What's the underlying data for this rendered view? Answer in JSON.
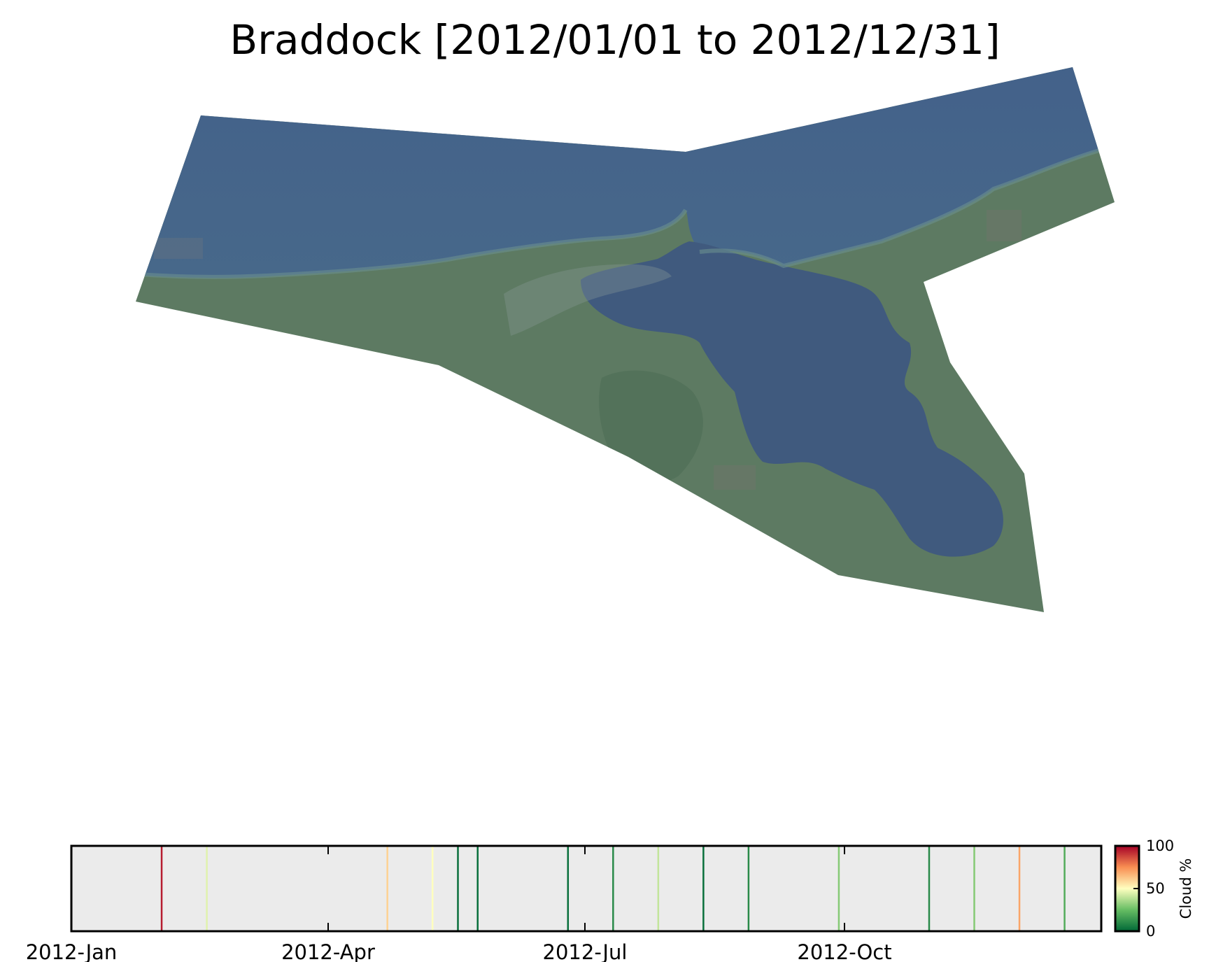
{
  "title": "Braddock [2012/01/01 to 2012/12/31]",
  "colors": {
    "water": "#435f85",
    "water_deep": "#3f587c",
    "land": "#5d7a62",
    "land_dark": "#4d6d55",
    "timeline_bg": "#ebebeb"
  },
  "chart_data": [
    {
      "type": "image",
      "description_shown": "true-color satellite composite of the area of interest"
    },
    {
      "type": "timeline",
      "xlim": [
        "2012-01-01",
        "2012-12-31"
      ],
      "tick_labels": [
        "2012-Jan",
        "2012-Apr",
        "2012-Jul",
        "2012-Oct"
      ],
      "tick_dates": [
        "2012-01-01",
        "2012-04-01",
        "2012-07-01",
        "2012-10-01"
      ],
      "acquisitions": [
        {
          "date": "2012-02-02",
          "cloud": 95
        },
        {
          "date": "2012-02-18",
          "cloud": 45
        },
        {
          "date": "2012-04-22",
          "cloud": 60
        },
        {
          "date": "2012-05-08",
          "cloud": 50
        },
        {
          "date": "2012-05-17",
          "cloud": 2
        },
        {
          "date": "2012-05-24",
          "cloud": 2
        },
        {
          "date": "2012-06-25",
          "cloud": 2
        },
        {
          "date": "2012-07-11",
          "cloud": 10
        },
        {
          "date": "2012-07-27",
          "cloud": 40
        },
        {
          "date": "2012-08-12",
          "cloud": 2
        },
        {
          "date": "2012-08-28",
          "cloud": 10
        },
        {
          "date": "2012-09-29",
          "cloud": 30
        },
        {
          "date": "2012-10-31",
          "cloud": 10
        },
        {
          "date": "2012-11-16",
          "cloud": 30
        },
        {
          "date": "2012-12-02",
          "cloud": 70
        },
        {
          "date": "2012-12-18",
          "cloud": 20
        }
      ]
    },
    {
      "type": "colorbar",
      "label": "Cloud %",
      "ticks": [
        100,
        50,
        0
      ],
      "range": [
        0,
        100
      ],
      "stops": [
        "#006837",
        "#ffffbf",
        "#a50026"
      ]
    }
  ]
}
